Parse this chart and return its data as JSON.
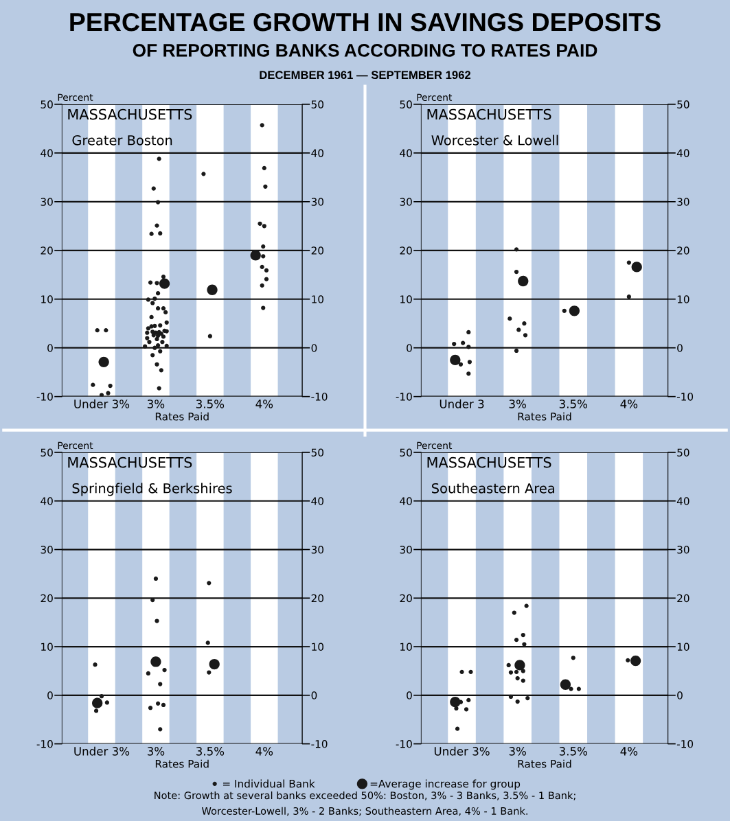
{
  "chart_data": [
    {
      "type": "scatter",
      "title": "MASSACHUSETTS",
      "subtitle": "Greater Boston",
      "ylabel": "Percent",
      "xlabel": "Rates Paid",
      "annotations": [
        "PERCENTAGE GROWTH IN SAVINGS DEPOSITS",
        "OF REPORTING BANKS ACCORDING TO RATES PAID",
        "DECEMBER 1961 — SEPTEMBER 1962"
      ],
      "xlim": [
        2.135,
        4.35
      ],
      "xticks": [
        {
          "value": 2.5,
          "label": "Under 3%"
        },
        {
          "value": 3,
          "label": "3%"
        },
        {
          "value": 3.5,
          "label": "3.5%"
        },
        {
          "value": 4,
          "label": "4%"
        }
      ],
      "ylim": [
        -10,
        50
      ],
      "yticks": [
        -10,
        0,
        10,
        20,
        30,
        40,
        50
      ],
      "y2lim": [
        -10,
        50
      ],
      "y2ticks": [
        -10,
        0,
        10,
        20,
        30,
        40,
        50
      ],
      "grid": "y",
      "marker": "circle",
      "bands": [
        {
          "axis": "x",
          "from": 2.375,
          "to": 2.625,
          "color": "#ffffff"
        },
        {
          "axis": "x",
          "from": 2.875,
          "to": 3.125,
          "color": "#ffffff"
        },
        {
          "axis": "x",
          "from": 3.375,
          "to": 3.625,
          "color": "#ffffff"
        },
        {
          "axis": "x",
          "from": 3.875,
          "to": 4.125,
          "color": "#ffffff"
        }
      ],
      "series": [
        {
          "color": "#1a1a1a",
          "x": [
            2.46,
            2.54,
            2.42,
            2.58,
            2.5,
            2.56,
            3.03,
            2.98,
            3.02,
            3.01,
            2.96,
            3.04,
            3.07,
            2.95,
            3.01,
            3.02,
            2.93,
            2.99,
            2.97,
            3.02,
            3.07,
            3.09,
            2.96,
            2.93,
            2.96,
            2.99,
            3.04,
            3.1,
            2.92,
            2.97,
            3.0,
            3.03,
            3.08,
            3.1,
            2.92,
            2.98,
            3.02,
            3.05,
            3.07,
            2.94,
            3.01,
            3.06,
            2.9,
            2.99,
            3.02,
            3.1,
            2.97,
            3.04,
            3.01,
            3.05,
            3.03,
            3.44,
            3.5,
            3.98,
            4.0,
            4.01,
            3.96,
            4.0,
            3.99,
            3.99,
            3.98,
            4.02,
            4.02,
            3.98,
            3.99
          ],
          "values": [
            3.6,
            3.6,
            -7.6,
            -7.8,
            -9.7,
            -9.3,
            38.8,
            32.7,
            29.9,
            25.1,
            23.4,
            23.5,
            14.6,
            13.4,
            13.3,
            11.2,
            9.9,
            10.1,
            9.2,
            8.1,
            8.1,
            7.3,
            6.3,
            4.0,
            4.4,
            4.5,
            4.6,
            5.2,
            3.1,
            3.3,
            3.1,
            3.2,
            3.5,
            3.4,
            2.0,
            2.6,
            2.5,
            2.9,
            2.3,
            1.2,
            1.8,
            1.2,
            0.3,
            0.0,
            0.5,
            0.4,
            -1.5,
            -0.7,
            -3.4,
            -4.6,
            -8.3,
            35.7,
            2.4,
            45.7,
            36.9,
            33.1,
            25.5,
            25.0,
            20.8,
            18.8,
            16.6,
            15.9,
            14.1,
            12.8,
            8.2
          ]
        },
        {
          "color": "#1a1a1a",
          "x": [
            2.52,
            3.08,
            3.52,
            3.92
          ],
          "values": [
            -2.9,
            13.2,
            11.9,
            19.0
          ]
        }
      ]
    },
    {
      "type": "scatter",
      "title": "MASSACHUSETTS",
      "subtitle": "Worcester & Lowell",
      "ylabel": "Percent",
      "xlabel": "Rates Paid",
      "xlim": [
        2.135,
        4.35
      ],
      "xticks": [
        {
          "value": 2.5,
          "label": "Under 3"
        },
        {
          "value": 3,
          "label": "3%"
        },
        {
          "value": 3.5,
          "label": "3.5%"
        },
        {
          "value": 4,
          "label": "4%"
        }
      ],
      "ylim": [
        -10,
        50
      ],
      "yticks": [
        -10,
        0,
        10,
        20,
        30,
        40,
        50
      ],
      "y2lim": [
        -10,
        50
      ],
      "y2ticks": [
        -10,
        0,
        10,
        20,
        30,
        40,
        50
      ],
      "grid": "y",
      "marker": "circle",
      "bands": [
        {
          "axis": "x",
          "from": 2.375,
          "to": 2.625,
          "color": "#ffffff"
        },
        {
          "axis": "x",
          "from": 2.875,
          "to": 3.125,
          "color": "#ffffff"
        },
        {
          "axis": "x",
          "from": 3.375,
          "to": 3.625,
          "color": "#ffffff"
        },
        {
          "axis": "x",
          "from": 3.875,
          "to": 4.125,
          "color": "#ffffff"
        }
      ],
      "series": [
        {
          "color": "#1a1a1a",
          "x": [
            2.43,
            2.51,
            2.56,
            2.56,
            2.49,
            2.57,
            2.56,
            2.99,
            2.99,
            2.93,
            3.06,
            3.01,
            3.07,
            2.99,
            3.42,
            4.0,
            4.0
          ],
          "values": [
            0.8,
            1.0,
            3.2,
            0.2,
            -3.4,
            -2.9,
            -5.3,
            20.2,
            15.6,
            6.0,
            5.0,
            3.7,
            2.6,
            -0.6,
            7.6,
            17.5,
            10.5
          ]
        },
        {
          "color": "#1a1a1a",
          "x": [
            2.44,
            3.05,
            3.51,
            4.07
          ],
          "values": [
            -2.5,
            13.7,
            7.6,
            16.6
          ]
        }
      ]
    },
    {
      "type": "scatter",
      "title": "MASSACHUSETTS",
      "subtitle": "Springfield & Berkshires",
      "ylabel": "Percent",
      "xlabel": "Rates Paid",
      "xlim": [
        2.135,
        4.35
      ],
      "xticks": [
        {
          "value": 2.5,
          "label": "Under 3%"
        },
        {
          "value": 3,
          "label": "3%"
        },
        {
          "value": 3.5,
          "label": "3.5%"
        },
        {
          "value": 4,
          "label": "4%"
        }
      ],
      "ylim": [
        -10,
        50
      ],
      "yticks": [
        -10,
        0,
        10,
        20,
        30,
        40,
        50
      ],
      "y2lim": [
        -10,
        50
      ],
      "y2ticks": [
        -10,
        0,
        10,
        20,
        30,
        40,
        50
      ],
      "grid": "y",
      "marker": "circle",
      "bands": [
        {
          "axis": "x",
          "from": 2.375,
          "to": 2.625,
          "color": "#ffffff"
        },
        {
          "axis": "x",
          "from": 2.875,
          "to": 3.125,
          "color": "#ffffff"
        },
        {
          "axis": "x",
          "from": 3.375,
          "to": 3.625,
          "color": "#ffffff"
        },
        {
          "axis": "x",
          "from": 3.875,
          "to": 4.125,
          "color": "#ffffff"
        }
      ],
      "series": [
        {
          "color": "#1a1a1a",
          "x": [
            2.44,
            2.5,
            2.55,
            2.45,
            3.0,
            2.97,
            3.01,
            3.08,
            2.93,
            3.04,
            3.02,
            3.07,
            2.95,
            3.04,
            3.49,
            3.48,
            3.49
          ],
          "values": [
            6.3,
            -0.2,
            -1.5,
            -3.2,
            24.0,
            19.6,
            15.3,
            5.2,
            4.5,
            2.3,
            -1.7,
            -2.0,
            -2.6,
            -7.0,
            23.1,
            10.8,
            4.7
          ]
        },
        {
          "color": "#1a1a1a",
          "x": [
            2.46,
            3.0,
            3.54
          ],
          "values": [
            -1.6,
            6.9,
            6.4
          ]
        }
      ]
    },
    {
      "type": "scatter",
      "title": "MASSACHUSETTS",
      "subtitle": "Southeastern Area",
      "ylabel": "Percent",
      "xlabel": "Rates Paid",
      "annotations": [
        "Note: Growth at several banks exceeded 50%: Boston, 3% - 3 Banks, 3.5% - 1 Bank;",
        "Worcester-Lowell, 3% - 2 Banks; Southeastern Area, 4% - 1 Bank."
      ],
      "xlim": [
        2.135,
        4.35
      ],
      "xticks": [
        {
          "value": 2.5,
          "label": "Under 3%"
        },
        {
          "value": 3,
          "label": "3%"
        },
        {
          "value": 3.5,
          "label": "3.5%"
        },
        {
          "value": 4,
          "label": "4%"
        }
      ],
      "ylim": [
        -10,
        50
      ],
      "yticks": [
        -10,
        0,
        10,
        20,
        30,
        40,
        50
      ],
      "y2lim": [
        -10,
        50
      ],
      "y2ticks": [
        -10,
        0,
        10,
        20,
        30,
        40,
        50
      ],
      "grid": "y",
      "marker": "circle",
      "legend": "bottom",
      "bands": [
        {
          "axis": "x",
          "from": 2.375,
          "to": 2.625,
          "color": "#ffffff"
        },
        {
          "axis": "x",
          "from": 2.875,
          "to": 3.125,
          "color": "#ffffff"
        },
        {
          "axis": "x",
          "from": 3.375,
          "to": 3.625,
          "color": "#ffffff"
        },
        {
          "axis": "x",
          "from": 3.875,
          "to": 4.125,
          "color": "#ffffff"
        }
      ],
      "series": [
        {
          "name": "= Individual Bank",
          "color": "#1a1a1a",
          "x": [
            2.5,
            2.58,
            2.49,
            2.56,
            2.45,
            2.54,
            2.46,
            3.08,
            2.97,
            3.05,
            2.99,
            3.06,
            2.92,
            2.94,
            2.99,
            3.05,
            3.0,
            3.05,
            2.94,
            3.09,
            3.0,
            3.5,
            3.48,
            3.55,
            3.99
          ],
          "values": [
            4.8,
            4.8,
            -1.4,
            -1.0,
            -2.7,
            -2.9,
            -6.9,
            18.4,
            17.0,
            12.4,
            11.4,
            10.5,
            6.2,
            4.7,
            4.8,
            5.0,
            3.5,
            3.0,
            -0.3,
            -0.6,
            -1.3,
            7.7,
            1.3,
            1.3,
            7.2
          ]
        },
        {
          "name": "=Average increase for group",
          "color": "#1a1a1a",
          "x": [
            2.44,
            3.02,
            3.43,
            4.06
          ],
          "values": [
            -1.4,
            6.2,
            2.2,
            7.1
          ]
        }
      ]
    }
  ]
}
